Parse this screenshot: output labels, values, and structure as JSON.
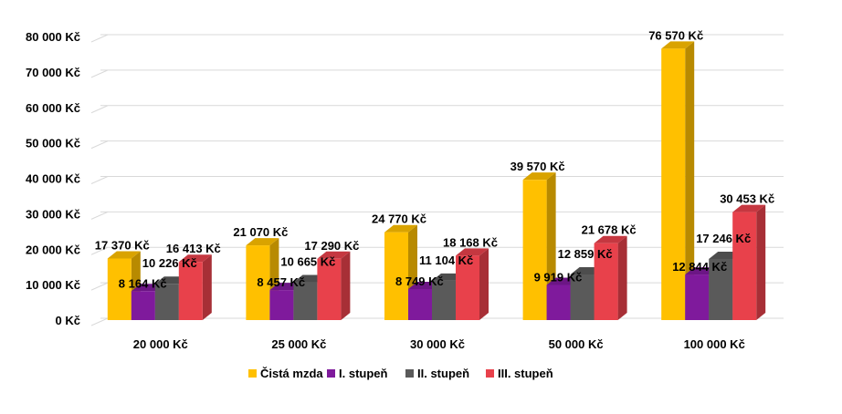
{
  "chart_data": {
    "type": "bar",
    "title": "",
    "xlabel": "",
    "ylabel": "",
    "ylim": [
      0,
      80000
    ],
    "ytick_step": 10000,
    "y_tick_labels": [
      "0 Kč",
      "10 000 Kč",
      "20 000 Kč",
      "30 000 Kč",
      "40 000 Kč",
      "50 000 Kč",
      "60 000 Kč",
      "70 000 Kč",
      "80 000 Kč"
    ],
    "grid": true,
    "legend_position": "bottom",
    "style": "3d-columns",
    "categories": [
      "20 000 Kč",
      "25 000 Kč",
      "30 000 Kč",
      "50 000 Kč",
      "100 000 Kč"
    ],
    "series": [
      {
        "name": "Čistá mzda",
        "color": "#FFC000",
        "values": [
          17370,
          21070,
          24770,
          39570,
          76570
        ],
        "labels": [
          "17 370 Kč",
          "21 070 Kč",
          "24 770 Kč",
          "39 570 Kč",
          "76 570 Kč"
        ]
      },
      {
        "name": "I. stupeň",
        "color": "#7F1A9C",
        "values": [
          8164,
          8457,
          8749,
          9919,
          12844
        ],
        "labels": [
          "8 164 Kč",
          "8 457 Kč",
          "8 749 Kč",
          "9 919 Kč",
          "12 844 Kč"
        ]
      },
      {
        "name": "II. stupeň",
        "color": "#5A5A5A",
        "values": [
          10226,
          10665,
          11104,
          12859,
          17246
        ],
        "labels": [
          "10 226 Kč",
          "10 665 Kč",
          "11 104 Kč",
          "12 859 Kč",
          "17 246 Kč"
        ]
      },
      {
        "name": "III. stupeň",
        "color": "#E8414B",
        "values": [
          16413,
          17290,
          18168,
          21678,
          30453
        ],
        "labels": [
          "16 413 Kč",
          "17 290 Kč",
          "18 168 Kč",
          "21 678 Kč",
          "30 453 Kč"
        ]
      }
    ]
  }
}
